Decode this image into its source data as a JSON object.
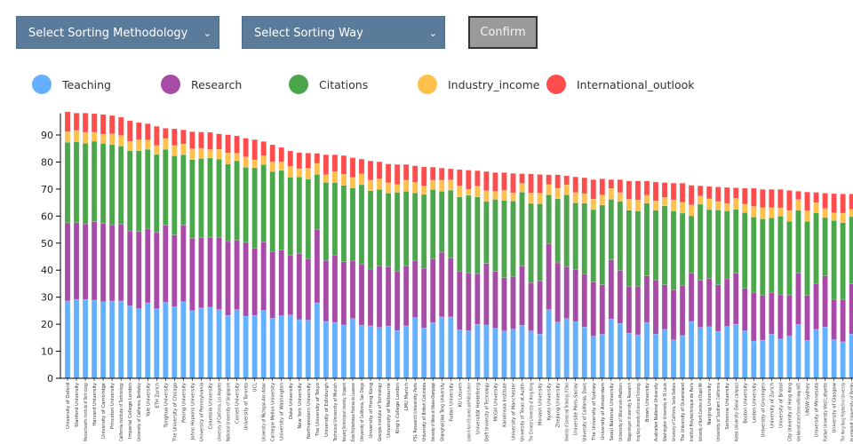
{
  "controls": {
    "sort_methodology_placeholder": "Select Sorting Methodology",
    "sort_way_placeholder": "Select Sorting Way",
    "confirm_label": "Confirm",
    "dropdown_icon": "chevron-down-icon"
  },
  "chart_data": {
    "type": "bar",
    "stacked": true,
    "title": "",
    "xlabel": "",
    "ylabel": "",
    "ylim": [
      0,
      98
    ],
    "yticks": [
      0,
      10,
      20,
      30,
      40,
      50,
      60,
      70,
      80,
      90
    ],
    "grid": false,
    "legend_position": "top",
    "series": [
      {
        "name": "Teaching",
        "color": "#64b0ff"
      },
      {
        "name": "Research",
        "color": "#a64ca6"
      },
      {
        "name": "Citations",
        "color": "#4ca64c"
      },
      {
        "name": "Industry_income",
        "color": "#ffc04c"
      },
      {
        "name": "International_outlook",
        "color": "#ff4c4c"
      }
    ],
    "categories": [
      "University of Oxford",
      "Stanford University",
      "Massachusetts Institute of Technology",
      "Harvard University",
      "University of Cambridge",
      "Princeton University",
      "California Institute of Technology",
      "Imperial College London",
      "University of California, Berkeley",
      "Yale University",
      "ETH Zurich",
      "Tsinghua University",
      "The University of Chicago",
      "Peking University",
      "Johns Hopkins University",
      "University of Pennsylvania",
      "Columbia University",
      "University of California, Los Angeles",
      "National University of Singapore",
      "Cornell University",
      "University of Toronto",
      "UCL",
      "University of Michigan-Ann Arbor",
      "Carnegie Mellon University",
      "University of Washington",
      "Duke University",
      "New York University",
      "Northwestern University",
      "The University of Tokyo",
      "University of Edinburgh",
      "Technical University of Munich",
      "Nanyang Technological University, Singapore",
      "École Polytechnique Fédérale de Lausanne",
      "University of California, San Diego",
      "University of Hong Kong",
      "Georgia Institute of Technology",
      "University of Melbourne",
      "King's College London",
      "LMU Munich",
      "PSL Research University Paris",
      "University of British Columbia",
      "University of Illinois at Urbana-Champaign",
      "Shanghai Jiao Tong University",
      "Fudan University",
      "KU Leuven",
      "London School of Economics and Political Science",
      "Universität Heidelberg",
      "Delft University of Technology",
      "McGill University",
      "Karolinska Institute",
      "University of Manchester",
      "University of Texas at Austin",
      "The Chinese University of Hong Kong",
      "Monash University",
      "Kyoto University",
      "Zhejiang University",
      "University of Science and Technology of China",
      "Université Paris-Saclay",
      "University of California, Davis",
      "The University of Sydney",
      "University of Amsterdam",
      "Seoul National University",
      "University of Wisconsin-Madison",
      "Wageningen University & Research",
      "Hong Kong University of Science and Technology",
      "Brown University",
      "Australian National University",
      "Washington University in St Louis",
      "University of California, Santa Barbara",
      "The University of Queensland",
      "Institut Polytechnique de Paris",
      "University of North Carolina at Chapel Hill",
      "Nanjing University",
      "University of Southern California",
      "Sorbonne University",
      "Korea University (Seoul campus)",
      "Boston University",
      "Leiden University",
      "University of Groningen",
      "University of Zurich",
      "University of Bristol",
      "City University of Hong Kong",
      "Korea Advanced Institute of Science and Technology (KAIST)",
      "UNSW Sydney",
      "University of Minnesota",
      "Purdue University West Lafayette",
      "University of Glasgow",
      "The Hong Kong Polytechnic University",
      "Humboldt University of Berlin"
    ],
    "values": [
      [
        28.6,
        28.9,
        29.8,
        3.9,
        7.4
      ],
      [
        29.2,
        28.4,
        29.9,
        4.2,
        6.4
      ],
      [
        29.2,
        27.9,
        29.9,
        4.0,
        7.1
      ],
      [
        28.9,
        29.0,
        29.8,
        3.3,
        6.9
      ],
      [
        28.3,
        29.0,
        29.6,
        3.4,
        7.3
      ],
      [
        28.6,
        28.2,
        29.7,
        3.9,
        6.8
      ],
      [
        28.6,
        28.4,
        28.9,
        3.9,
        6.8
      ],
      [
        26.8,
        27.7,
        29.7,
        3.5,
        7.6
      ],
      [
        25.7,
        28.6,
        29.9,
        4.0,
        6.4
      ],
      [
        27.9,
        27.5,
        29.3,
        3.4,
        6.1
      ],
      [
        25.7,
        28.3,
        28.8,
        3.3,
        7.1
      ],
      [
        28.1,
        28.5,
        28.1,
        4.0,
        3.8
      ],
      [
        26.5,
        26.5,
        29.3,
        3.8,
        6.2
      ],
      [
        28.3,
        28.3,
        26.1,
        4.0,
        5.2
      ],
      [
        25.0,
        26.8,
        29.1,
        4.0,
        6.3
      ],
      [
        26.0,
        26.1,
        29.2,
        3.8,
        6.0
      ],
      [
        26.3,
        25.9,
        29.3,
        3.1,
        6.4
      ],
      [
        25.4,
        26.7,
        29.0,
        3.6,
        5.7
      ],
      [
        23.3,
        27.3,
        28.7,
        4.1,
        6.7
      ],
      [
        25.4,
        25.7,
        29.4,
        2.7,
        6.5
      ],
      [
        23.0,
        27.3,
        27.8,
        3.8,
        6.9
      ],
      [
        23.3,
        24.9,
        29.7,
        2.9,
        7.5
      ],
      [
        25.1,
        25.4,
        28.6,
        3.2,
        5.3
      ],
      [
        22.2,
        24.7,
        29.6,
        3.5,
        6.4
      ],
      [
        23.1,
        24.3,
        29.5,
        3.1,
        5.4
      ],
      [
        23.4,
        22.2,
        28.8,
        4.0,
        5.7
      ],
      [
        21.7,
        24.4,
        28.4,
        3.0,
        6.0
      ],
      [
        21.5,
        22.7,
        29.5,
        4.0,
        5.6
      ],
      [
        27.9,
        27.2,
        20.3,
        4.1,
        3.7
      ],
      [
        21.0,
        22.6,
        28.9,
        2.8,
        7.4
      ],
      [
        20.7,
        24.8,
        26.9,
        4.1,
        6.2
      ],
      [
        19.7,
        23.4,
        28.3,
        4.1,
        6.9
      ],
      [
        22.1,
        21.3,
        27.0,
        3.9,
        7.3
      ],
      [
        19.6,
        22.7,
        29.3,
        4.0,
        5.5
      ],
      [
        19.4,
        21.0,
        29.0,
        3.9,
        7.1
      ],
      [
        18.8,
        22.8,
        28.3,
        3.9,
        6.3
      ],
      [
        19.3,
        22.0,
        27.2,
        3.8,
        7.0
      ],
      [
        17.7,
        21.9,
        29.2,
        2.9,
        7.4
      ],
      [
        19.4,
        22.2,
        27.6,
        4.1,
        5.8
      ],
      [
        22.5,
        21.1,
        25.0,
        3.9,
        6.1
      ],
      [
        18.6,
        22.1,
        27.3,
        3.1,
        7.1
      ],
      [
        20.6,
        23.6,
        25.6,
        3.5,
        4.8
      ],
      [
        22.7,
        23.9,
        22.6,
        4.1,
        4.5
      ],
      [
        22.7,
        21.8,
        25.1,
        3.8,
        4.1
      ],
      [
        17.9,
        21.7,
        27.5,
        4.1,
        6.0
      ],
      [
        17.6,
        21.4,
        28.7,
        2.2,
        7.1
      ],
      [
        20.0,
        18.7,
        28.4,
        4.0,
        5.7
      ],
      [
        19.7,
        22.8,
        23.0,
        3.9,
        7.1
      ],
      [
        18.5,
        21.0,
        26.7,
        2.9,
        7.0
      ],
      [
        17.5,
        19.7,
        28.6,
        3.7,
        6.6
      ],
      [
        18.2,
        19.5,
        27.9,
        3.0,
        7.2
      ],
      [
        19.6,
        22.0,
        27.3,
        3.2,
        3.6
      ],
      [
        17.5,
        17.9,
        29.3,
        3.9,
        7.0
      ],
      [
        16.4,
        19.6,
        28.6,
        3.9,
        6.9
      ],
      [
        25.4,
        24.4,
        18.1,
        3.8,
        3.6
      ],
      [
        20.8,
        21.9,
        23.7,
        3.9,
        5.0
      ],
      [
        22.1,
        19.2,
        26.6,
        3.7,
        3.3
      ],
      [
        21.0,
        19.3,
        24.6,
        3.8,
        5.8
      ],
      [
        19.0,
        19.6,
        26.2,
        3.5,
        5.9
      ],
      [
        15.6,
        20.0,
        26.8,
        3.9,
        7.2
      ],
      [
        16.3,
        18.3,
        29.5,
        3.7,
        6.0
      ],
      [
        21.9,
        21.9,
        22.4,
        4.0,
        3.3
      ],
      [
        20.3,
        19.6,
        25.6,
        3.2,
        4.8
      ],
      [
        16.7,
        17.3,
        28.2,
        4.0,
        6.8
      ],
      [
        16.1,
        17.9,
        27.9,
        4.1,
        7.0
      ],
      [
        20.7,
        17.2,
        26.9,
        2.9,
        5.3
      ],
      [
        16.4,
        20.0,
        25.8,
        3.4,
        7.0
      ],
      [
        18.1,
        16.5,
        29.2,
        3.1,
        5.5
      ],
      [
        14.2,
        18.5,
        29.2,
        4.1,
        6.2
      ],
      [
        15.8,
        18.5,
        26.8,
        4.0,
        7.1
      ],
      [
        21.0,
        17.9,
        21.2,
        4.0,
        7.3
      ],
      [
        18.8,
        17.5,
        28.1,
        3.0,
        3.8
      ],
      [
        19.1,
        17.9,
        25.4,
        4.0,
        4.6
      ],
      [
        17.4,
        17.2,
        27.7,
        3.1,
        5.4
      ],
      [
        19.2,
        17.6,
        25.1,
        2.8,
        5.9
      ],
      [
        20.0,
        18.9,
        23.6,
        4.1,
        3.9
      ],
      [
        17.6,
        15.7,
        28.0,
        3.1,
        5.9
      ],
      [
        13.8,
        18.0,
        27.9,
        3.9,
        6.7
      ],
      [
        14.1,
        16.6,
        28.3,
        4.1,
        6.8
      ],
      [
        16.3,
        15.5,
        27.6,
        3.7,
        6.8
      ],
      [
        14.5,
        16.4,
        29.1,
        3.0,
        6.9
      ],
      [
        15.6,
        15.1,
        27.4,
        4.0,
        7.4
      ],
      [
        19.9,
        19.1,
        23.2,
        3.9,
        3.1
      ],
      [
        14.0,
        16.7,
        27.4,
        3.9,
        6.9
      ],
      [
        18.1,
        16.9,
        26.2,
        3.8,
        3.8
      ],
      [
        19.0,
        18.9,
        21.6,
        3.3,
        5.7
      ],
      [
        14.3,
        14.9,
        29.2,
        2.8,
        7.1
      ],
      [
        13.5,
        15.7,
        28.4,
        3.5,
        7.1
      ],
      [
        16.4,
        18.5,
        24.9,
        2.7,
        5.7
      ]
    ]
  }
}
